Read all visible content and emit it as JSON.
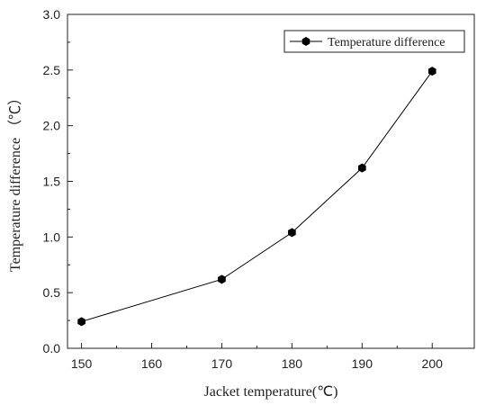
{
  "chart_data": {
    "type": "line",
    "xlabel": "Jacket temperature(℃)",
    "ylabel": "Temperature difference （℃）",
    "xlim": [
      148,
      206
    ],
    "ylim": [
      0,
      3.0
    ],
    "x_ticks": [
      150,
      160,
      170,
      180,
      190,
      200
    ],
    "y_ticks": [
      0,
      0.5,
      1.0,
      1.5,
      2.0,
      2.5,
      3.0
    ],
    "x_tick_labels": [
      "150",
      "160",
      "170",
      "180",
      "190",
      "200"
    ],
    "y_tick_labels": [
      "0.0",
      "0.5",
      "1.0",
      "1.5",
      "2.0",
      "2.5",
      "3.0"
    ],
    "legend_position": "top-right",
    "grid": false,
    "marker": "hexagon",
    "series": [
      {
        "name": "Temperature difference",
        "color": "#000000",
        "x": [
          150,
          170,
          180,
          190,
          200
        ],
        "values": [
          0.24,
          0.62,
          1.04,
          1.62,
          2.49
        ]
      }
    ]
  }
}
